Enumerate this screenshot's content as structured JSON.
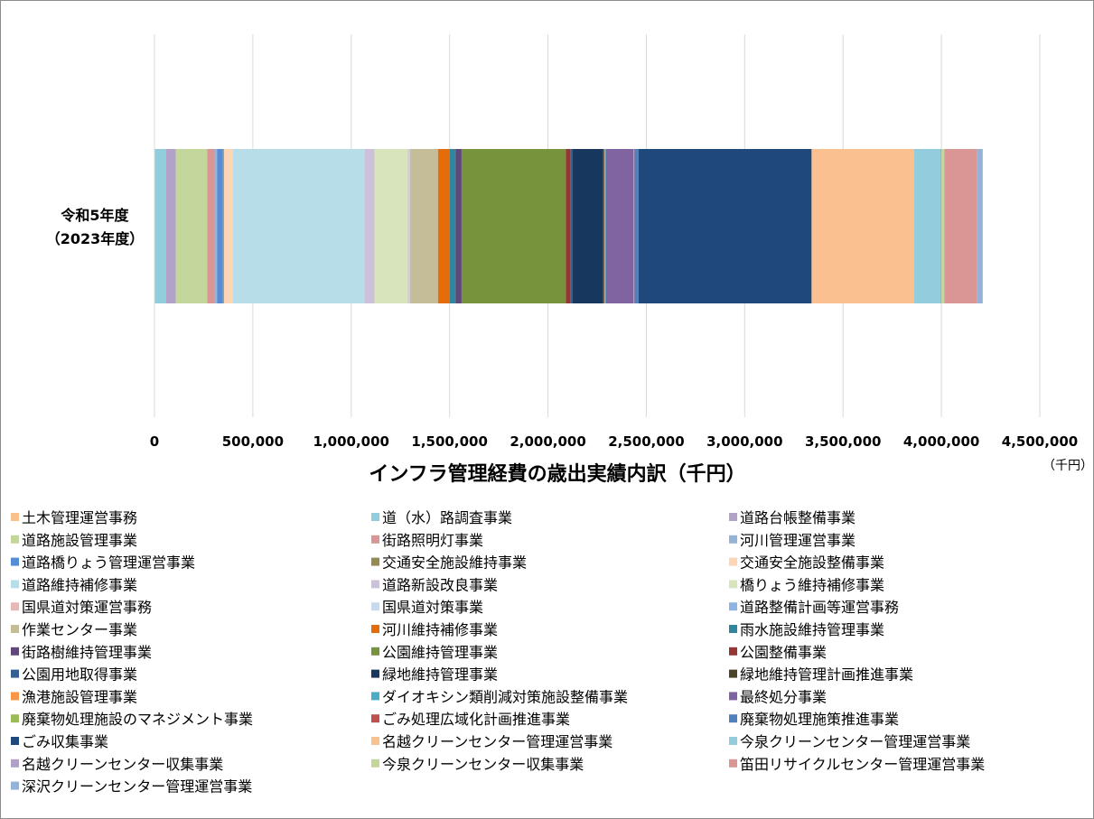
{
  "chart_data": {
    "type": "bar",
    "orientation": "horizontal",
    "stacked": true,
    "title": "インフラ管理経費の歳出実績内訳（千円）",
    "unit_label": "（千円）",
    "categories": [
      "令和5年度（2023年度）"
    ],
    "category_lines": [
      "令和5年度",
      "（2023年度）"
    ],
    "xlim": [
      0,
      4500000
    ],
    "x_ticks": [
      0,
      500000,
      1000000,
      1500000,
      2000000,
      2500000,
      3000000,
      3500000,
      4000000,
      4500000
    ],
    "x_tick_labels": [
      "0",
      "500,000",
      "1,000,000",
      "1,500,000",
      "2,000,000",
      "2,500,000",
      "3,000,000",
      "3,500,000",
      "4,000,000",
      "4,500,000"
    ],
    "grid": true,
    "legend_position": "bottom",
    "series": [
      {
        "name": "土木管理運営事務",
        "color": "#f9c08c",
        "values": [
          3000
        ]
      },
      {
        "name": "道（水）路調査事業",
        "color": "#92cddc",
        "values": [
          55000
        ]
      },
      {
        "name": "道路台帳整備事業",
        "color": "#b3a2c7",
        "values": [
          50000
        ]
      },
      {
        "name": "道路施設管理事業",
        "color": "#c3d69b",
        "values": [
          160000
        ]
      },
      {
        "name": "街路照明灯事業",
        "color": "#da9694",
        "values": [
          40000
        ]
      },
      {
        "name": "河川管理運営事業",
        "color": "#95b3d7",
        "values": [
          10000
        ]
      },
      {
        "name": "道路橋りょう管理運営事業",
        "color": "#558ed5",
        "values": [
          30000
        ]
      },
      {
        "name": "交通安全施設維持事業",
        "color": "#948a54",
        "values": [
          5000
        ]
      },
      {
        "name": "交通安全施設整備事業",
        "color": "#fcd5b4",
        "values": [
          45000
        ]
      },
      {
        "name": "道路維持補修事業",
        "color": "#b7dee8",
        "values": [
          670000
        ]
      },
      {
        "name": "道路新設改良事業",
        "color": "#ccc0da",
        "values": [
          50000
        ]
      },
      {
        "name": "橋りょう維持補修事業",
        "color": "#d7e4bc",
        "values": [
          170000
        ]
      },
      {
        "name": "国県道対策運営事務",
        "color": "#e6b9b8",
        "values": [
          5000
        ]
      },
      {
        "name": "国県道対策事業",
        "color": "#c5d9f1",
        "values": [
          5000
        ]
      },
      {
        "name": "道路整備計画等運営事務",
        "color": "#8db4e2",
        "values": [
          3000
        ]
      },
      {
        "name": "作業センター事業",
        "color": "#c4bd97",
        "values": [
          140000
        ]
      },
      {
        "name": "河川維持補修事業",
        "color": "#e46c0a",
        "values": [
          60000
        ]
      },
      {
        "name": "雨水施設維持管理事業",
        "color": "#31859c",
        "values": [
          30000
        ]
      },
      {
        "name": "街路樹維持管理事業",
        "color": "#60497a",
        "values": [
          30000
        ]
      },
      {
        "name": "公園維持管理事業",
        "color": "#77933c",
        "values": [
          530000
        ]
      },
      {
        "name": "公園整備事業",
        "color": "#953735",
        "values": [
          25000
        ]
      },
      {
        "name": "公園用地取得事業",
        "color": "#366092",
        "values": [
          10000
        ]
      },
      {
        "name": "緑地維持管理事業",
        "color": "#17375e",
        "values": [
          155000
        ]
      },
      {
        "name": "緑地維持管理計画推進事業",
        "color": "#494429",
        "values": [
          5000
        ]
      },
      {
        "name": "漁港施設管理事業",
        "color": "#f79646",
        "values": [
          5000
        ]
      },
      {
        "name": "ダイオキシン類削減対策施設整備事業",
        "color": "#4bacc6",
        "values": [
          3000
        ]
      },
      {
        "name": "最終処分事業",
        "color": "#8064a2",
        "values": [
          140000
        ]
      },
      {
        "name": "廃棄物処理施設のマネジメント事業",
        "color": "#9bbb59",
        "values": [
          3000
        ]
      },
      {
        "name": "ごみ処理広域化計画推進事業",
        "color": "#c0504d",
        "values": [
          3000
        ]
      },
      {
        "name": "廃棄物処理施策推進事業",
        "color": "#4f81bd",
        "values": [
          20000
        ]
      },
      {
        "name": "ごみ収集事業",
        "color": "#1f497d",
        "values": [
          880000
        ]
      },
      {
        "name": "名越クリーンセンター管理運営事業",
        "color": "#fac090",
        "values": [
          520000
        ]
      },
      {
        "name": "今泉クリーンセンター管理運営事業",
        "color": "#93cddd",
        "values": [
          135000
        ]
      },
      {
        "name": "名越クリーンセンター収集事業",
        "color": "#b2a1c7",
        "values": [
          5000
        ]
      },
      {
        "name": "今泉クリーンセンター収集事業",
        "color": "#c2d69a",
        "values": [
          15000
        ]
      },
      {
        "name": "笛田リサイクルセンター管理運営事業",
        "color": "#d99694",
        "values": [
          165000
        ]
      },
      {
        "name": "深沢クリーンセンター管理運営事業",
        "color": "#95b3d7",
        "values": [
          30000
        ]
      }
    ]
  }
}
